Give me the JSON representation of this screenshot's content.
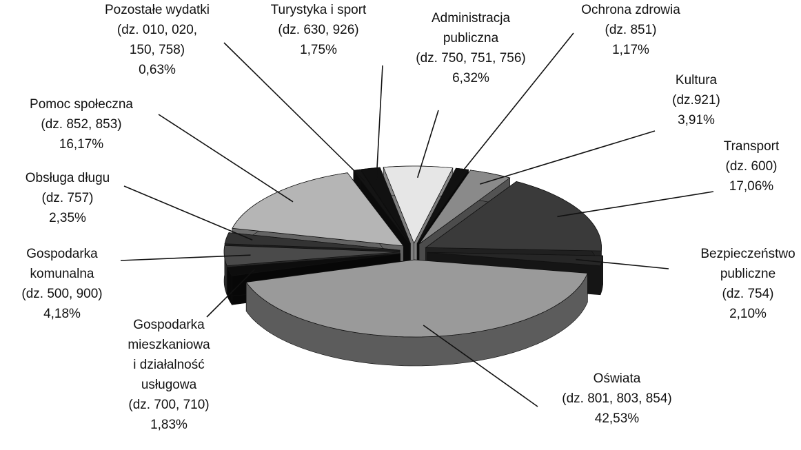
{
  "chart_data": {
    "type": "pie3d",
    "categories": [
      "Administracja\npubliczna\n(dz. 750, 751, 756)",
      "Ochrona zdrowia\n(dz. 851)",
      "Kultura\n(dz.921)",
      "Transport\n(dz. 600)",
      "Bezpieczeństwo\npubliczne\n(dz. 754)",
      "Oświata\n(dz. 801, 803, 854)",
      "Gospodarka\nmieszkaniowa\ni działalność\nusługowa\n(dz. 700, 710)",
      "Gospodarka\nkomunalna\n(dz. 500, 900)",
      "Obsługa długu\n(dz. 757)",
      "Pomoc społeczna\n(dz. 852, 853)",
      "Pozostałe wydatki\n(dz. 010, 020,\n150, 758)",
      "Turystyka i sport\n(dz. 630, 926)"
    ],
    "values": [
      6.32,
      1.17,
      3.91,
      17.06,
      2.1,
      42.53,
      1.83,
      4.18,
      2.35,
      16.17,
      0.63,
      1.75
    ],
    "value_labels": [
      "6,32%",
      "1,17%",
      "3,91%",
      "17,06%",
      "2,10%",
      "42,53%",
      "1,83%",
      "4,18%",
      "2,35%",
      "16,17%",
      "0,63%",
      "1,75%"
    ],
    "colors": [
      "#e6e6e6",
      "#111111",
      "#8a8a8a",
      "#3a3a3a",
      "#262626",
      "#9a9a9a",
      "#0d0d0d",
      "#4a4a4a",
      "#333333",
      "#b5b5b5",
      "#141414",
      "#111111"
    ]
  }
}
